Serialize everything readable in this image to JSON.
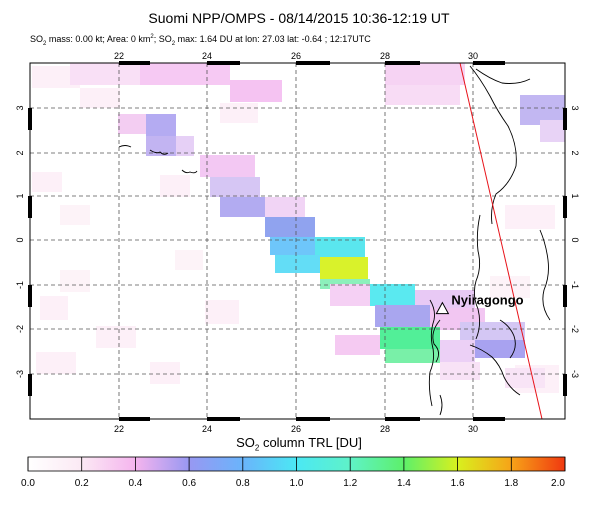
{
  "title": "Suomi NPP/OMPS - 08/14/2015 10:36-12:19 UT",
  "subtitle": {
    "so2_prefix": "SO",
    "so2_sub": "2",
    "mass_area": " mass: 0.00 kt; Area: 0 km",
    "area_sup": "2",
    "max_prefix": "; SO",
    "max_sub": "2",
    "max_rest": " max: 1.64 DU at lon: 27.03 lat: -0.64 ; 12:17UTC"
  },
  "map": {
    "lon_range": [
      20,
      32
    ],
    "lat_range": [
      -4,
      4
    ],
    "lon_ticks": [
      "22",
      "24",
      "26",
      "28",
      "30"
    ],
    "lat_ticks": [
      "3",
      "2",
      "1",
      "0",
      "-1",
      "-2",
      "-3"
    ],
    "volcano_label": "Nyiragongo",
    "volcano": {
      "lon": 29.25,
      "lat": -1.52
    }
  },
  "colorbar": {
    "title_prefix": "SO",
    "title_sub": "2",
    "title_rest": " column TRL [DU]",
    "ticks": [
      "0.0",
      "0.2",
      "0.4",
      "0.6",
      "0.8",
      "1.0",
      "1.2",
      "1.4",
      "1.6",
      "1.8",
      "2.0"
    ],
    "range": [
      0,
      2.0
    ]
  },
  "colors": {
    "frame": "#000000",
    "grid": "#555555",
    "swath_edge": "#e8131a",
    "coast": "#000000"
  }
}
